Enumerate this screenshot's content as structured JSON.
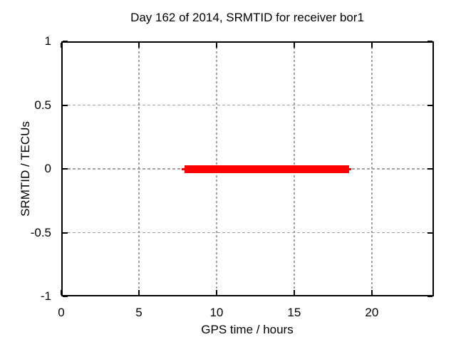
{
  "chart_data": {
    "type": "line",
    "title": "Day 162 of 2014, SRMTID for receiver bor1",
    "xlabel": "GPS time / hours",
    "ylabel": "SRMTID / TECUs",
    "xlim": [
      0,
      24
    ],
    "ylim": [
      -1,
      1
    ],
    "xticks": {
      "values": [
        0,
        5,
        10,
        15,
        20
      ],
      "labels": [
        "0",
        "5",
        "10",
        "15",
        "20"
      ]
    },
    "yticks": {
      "values": [
        1,
        0.5,
        0,
        -0.5,
        -1
      ],
      "labels": [
        "1",
        "0.5",
        "0",
        "-0.5",
        "-1"
      ]
    },
    "grid": true,
    "legend": "none",
    "series": [
      {
        "name": "SRMTID",
        "color": "#ff0000",
        "y_value": 0,
        "x_start": 7.75,
        "x_end": 18.7,
        "core_x_start": 7.95,
        "core_x_end": 18.55,
        "x": [
          7.75,
          18.7
        ],
        "y": [
          0,
          0
        ]
      }
    ]
  },
  "colors": {
    "background": "#ffffff",
    "axis": "#000000",
    "grid": "#a0a0a0",
    "text": "#000000",
    "series": "#ff0000"
  }
}
